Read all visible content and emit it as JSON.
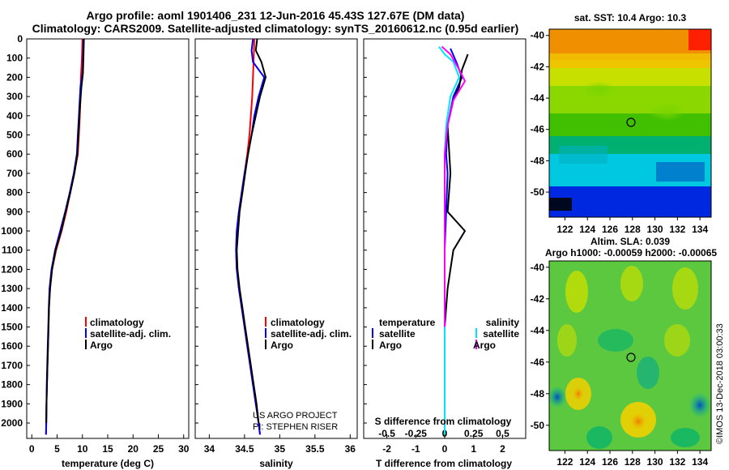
{
  "header": {
    "title_line1": "Argo profile: aoml 1901406_231 12-Jun-2016 45.43S 127.67E (DM data)",
    "title_line2": "Climatology: CARS2009. Satellite-adjusted climatology: synTS_20160612.nc (0.95d earlier)"
  },
  "colors": {
    "climatology": "#ff0000",
    "satellite": "#0000ff",
    "argo": "#000000",
    "salinity_satellite": "#00e5ff",
    "salinity_argo": "#ff00ff"
  },
  "depth_axis": {
    "ylim": [
      2080,
      0
    ],
    "ticks": [
      "0",
      "100",
      "200",
      "300",
      "400",
      "500",
      "600",
      "700",
      "800",
      "900",
      "1000",
      "1100",
      "1200",
      "1300",
      "1400",
      "1500",
      "1600",
      "1700",
      "1800",
      "1900",
      "2000"
    ]
  },
  "panels": {
    "temperature": {
      "xlabel": "temperature (deg C)",
      "ticks": [
        "0",
        "5",
        "10",
        "15",
        "20",
        "25",
        "30"
      ],
      "legend": [
        "climatology",
        "satellite-adj. clim.",
        "Argo"
      ]
    },
    "salinity": {
      "xlabel": "salinity",
      "ticks": [
        "34",
        "34.5",
        "35",
        "35.5",
        "36"
      ],
      "legend": [
        "climatology",
        "satellite-adj. clim.",
        "Argo"
      ],
      "watermark": [
        "US ARGO PROJECT",
        "PI: STEPHEN RISER"
      ]
    },
    "difference": {
      "xlabel": "T difference from climatology",
      "top_label": "S difference from climatology",
      "ticks": [
        "-2",
        "-1",
        "0",
        "1",
        "2"
      ],
      "top_ticks": [
        "-0.5",
        "-0.25",
        "0",
        "0.25",
        "0.5"
      ],
      "legend_t_head": "temperature",
      "legend_s_head": "salinity",
      "legend_items": [
        "satellite",
        "Argo"
      ]
    }
  },
  "maps": {
    "sst": {
      "title": "sat. SST: 10.4 Argo: 10.3",
      "yticks": [
        "-40",
        "-42",
        "-44",
        "-46",
        "-48",
        "-50"
      ],
      "xticks": [
        "122",
        "124",
        "126",
        "128",
        "130",
        "132",
        "134"
      ]
    },
    "sla": {
      "title_line1": "Altim. SLA: 0.039",
      "title_line2": "Argo h1000: -0.00059 h2000: -0.00065",
      "yticks": [
        "-40",
        "-42",
        "-44",
        "-46",
        "-48",
        "-50"
      ],
      "xticks": [
        "122",
        "124",
        "126",
        "128",
        "130",
        "132",
        "134"
      ]
    }
  },
  "footer": {
    "credit": "©IMOS 13-Dec-2018 03:00:33"
  },
  "chart_data": [
    {
      "type": "line",
      "xlabel": "temperature (deg C)",
      "ylabel": "",
      "xlim": [
        -1,
        31
      ],
      "ylim": [
        2080,
        0
      ],
      "series": [
        {
          "name": "climatology",
          "color": "#ff0000",
          "points": [
            [
              10,
              0
            ],
            [
              9.9,
              100
            ],
            [
              9.7,
              200
            ],
            [
              9.6,
              300
            ],
            [
              9.5,
              400
            ],
            [
              9.3,
              500
            ],
            [
              9.1,
              600
            ],
            [
              8.4,
              700
            ],
            [
              7.6,
              800
            ],
            [
              6.8,
              900
            ],
            [
              5.9,
              1000
            ],
            [
              4.8,
              1100
            ],
            [
              4.0,
              1200
            ],
            [
              3.6,
              1300
            ],
            [
              3.4,
              1400
            ],
            [
              3.3,
              1500
            ],
            [
              3.2,
              1600
            ],
            [
              3.1,
              1700
            ],
            [
              3.0,
              1800
            ],
            [
              2.9,
              1900
            ],
            [
              2.85,
              2000
            ],
            [
              2.8,
              2060
            ]
          ]
        },
        {
          "name": "satellite-adj. clim.",
          "color": "#0000ff",
          "points": [
            [
              10.2,
              0
            ],
            [
              10.1,
              100
            ],
            [
              10.0,
              180
            ],
            [
              9.6,
              250
            ],
            [
              9.3,
              400
            ],
            [
              9.1,
              500
            ],
            [
              8.9,
              600
            ],
            [
              8.3,
              700
            ],
            [
              7.5,
              800
            ],
            [
              6.6,
              900
            ],
            [
              5.6,
              1000
            ],
            [
              4.6,
              1100
            ],
            [
              3.9,
              1200
            ],
            [
              3.5,
              1300
            ],
            [
              3.35,
              1400
            ],
            [
              3.25,
              1500
            ],
            [
              3.15,
              1600
            ],
            [
              3.05,
              1700
            ],
            [
              2.95,
              1800
            ],
            [
              2.9,
              1900
            ],
            [
              2.85,
              2000
            ],
            [
              2.8,
              2060
            ]
          ]
        },
        {
          "name": "Argo",
          "color": "#000000",
          "points": [
            [
              10.3,
              0
            ],
            [
              10.2,
              100
            ],
            [
              10.1,
              180
            ],
            [
              9.8,
              250
            ],
            [
              9.4,
              400
            ],
            [
              9.2,
              500
            ],
            [
              9.0,
              600
            ],
            [
              8.4,
              700
            ],
            [
              7.6,
              800
            ],
            [
              6.7,
              900
            ],
            [
              5.8,
              1000
            ],
            [
              4.7,
              1100
            ],
            [
              4.0,
              1200
            ],
            [
              3.6,
              1300
            ],
            [
              3.4,
              1400
            ],
            [
              3.3,
              1500
            ],
            [
              3.2,
              1600
            ],
            [
              3.1,
              1700
            ],
            [
              3.0,
              1800
            ],
            [
              2.9,
              1900
            ],
            [
              2.85,
              2000
            ]
          ]
        }
      ]
    },
    {
      "type": "line",
      "xlabel": "salinity",
      "ylabel": "",
      "xlim": [
        33.8,
        36.1
      ],
      "ylim": [
        2080,
        0
      ],
      "series": [
        {
          "name": "climatology",
          "color": "#ff0000",
          "points": [
            [
              34.64,
              0
            ],
            [
              34.63,
              100
            ],
            [
              34.62,
              200
            ],
            [
              34.61,
              300
            ],
            [
              34.59,
              400
            ],
            [
              34.57,
              500
            ],
            [
              34.54,
              600
            ],
            [
              34.5,
              700
            ],
            [
              34.46,
              800
            ],
            [
              34.42,
              900
            ],
            [
              34.39,
              1000
            ],
            [
              34.38,
              1100
            ],
            [
              34.39,
              1200
            ],
            [
              34.42,
              1300
            ],
            [
              34.46,
              1400
            ],
            [
              34.5,
              1500
            ],
            [
              34.54,
              1600
            ],
            [
              34.58,
              1700
            ],
            [
              34.62,
              1800
            ],
            [
              34.66,
              1900
            ],
            [
              34.7,
              2000
            ],
            [
              34.72,
              2060
            ]
          ]
        },
        {
          "name": "satellite-adj. clim.",
          "color": "#0000ff",
          "points": [
            [
              34.62,
              0
            ],
            [
              34.6,
              60
            ],
            [
              34.62,
              120
            ],
            [
              34.78,
              200
            ],
            [
              34.7,
              300
            ],
            [
              34.64,
              400
            ],
            [
              34.6,
              500
            ],
            [
              34.55,
              600
            ],
            [
              34.5,
              700
            ],
            [
              34.46,
              800
            ],
            [
              34.42,
              900
            ],
            [
              34.39,
              1000
            ],
            [
              34.38,
              1100
            ],
            [
              34.39,
              1200
            ],
            [
              34.42,
              1300
            ],
            [
              34.46,
              1400
            ],
            [
              34.5,
              1500
            ],
            [
              34.54,
              1600
            ],
            [
              34.58,
              1700
            ],
            [
              34.62,
              1800
            ],
            [
              34.66,
              1900
            ],
            [
              34.7,
              2000
            ],
            [
              34.72,
              2060
            ]
          ]
        },
        {
          "name": "Argo",
          "color": "#000000",
          "points": [
            [
              34.68,
              0
            ],
            [
              34.66,
              60
            ],
            [
              34.74,
              120
            ],
            [
              34.8,
              200
            ],
            [
              34.72,
              300
            ],
            [
              34.66,
              400
            ],
            [
              34.6,
              500
            ],
            [
              34.55,
              600
            ],
            [
              34.51,
              700
            ],
            [
              34.47,
              800
            ],
            [
              34.43,
              900
            ],
            [
              34.41,
              1000
            ],
            [
              34.39,
              1100
            ],
            [
              34.4,
              1200
            ],
            [
              34.43,
              1300
            ],
            [
              34.47,
              1400
            ],
            [
              34.51,
              1500
            ],
            [
              34.55,
              1600
            ],
            [
              34.59,
              1700
            ],
            [
              34.63,
              1800
            ],
            [
              34.67,
              1900
            ],
            [
              34.7,
              2000
            ]
          ]
        }
      ]
    },
    {
      "type": "line",
      "xlabel": "T difference from climatology",
      "ylabel": "",
      "xlim": [
        -2.8,
        2.8
      ],
      "ylim": [
        2080,
        0
      ],
      "series": [
        {
          "name": "temperature satellite",
          "color": "#0000ff",
          "points": [
            [
              0.2,
              50
            ],
            [
              0.4,
              120
            ],
            [
              0.6,
              200
            ],
            [
              0.3,
              300
            ],
            [
              0.1,
              450
            ],
            [
              0.05,
              600
            ],
            [
              0.1,
              700
            ],
            [
              0.05,
              900
            ],
            [
              0.0,
              1100
            ],
            [
              0.0,
              1300
            ],
            [
              0.0,
              1500
            ],
            [
              0.0,
              2060
            ]
          ]
        },
        {
          "name": "temperature Argo",
          "color": "#000000",
          "points": [
            [
              0.8,
              80
            ],
            [
              0.6,
              160
            ],
            [
              0.5,
              250
            ],
            [
              0.3,
              320
            ],
            [
              0.1,
              450
            ],
            [
              0.2,
              700
            ],
            [
              0.1,
              900
            ],
            [
              0.7,
              1000
            ],
            [
              0.3,
              1100
            ],
            [
              0.2,
              1200
            ],
            [
              0.1,
              1300
            ],
            [
              0.05,
              1400
            ],
            [
              0.0,
              1500
            ]
          ]
        },
        {
          "name": "salinity satellite",
          "color": "#00e5ff",
          "points": [
            [
              -0.2,
              40
            ],
            [
              0.0,
              80
            ],
            [
              0.3,
              120
            ],
            [
              0.5,
              200
            ],
            [
              0.2,
              300
            ],
            [
              0.05,
              450
            ],
            [
              0.0,
              600
            ],
            [
              0.0,
              900
            ],
            [
              0.0,
              1200
            ],
            [
              0.0,
              1500
            ],
            [
              0.0,
              2060
            ]
          ]
        },
        {
          "name": "salinity Argo",
          "color": "#ff00ff",
          "points": [
            [
              -0.1,
              40
            ],
            [
              0.2,
              80
            ],
            [
              0.5,
              160
            ],
            [
              0.7,
              220
            ],
            [
              0.3,
              320
            ],
            [
              0.1,
              450
            ],
            [
              0.0,
              600
            ],
            [
              0.0,
              900
            ],
            [
              0.0,
              1200
            ],
            [
              0.0,
              1500
            ]
          ]
        }
      ]
    }
  ]
}
